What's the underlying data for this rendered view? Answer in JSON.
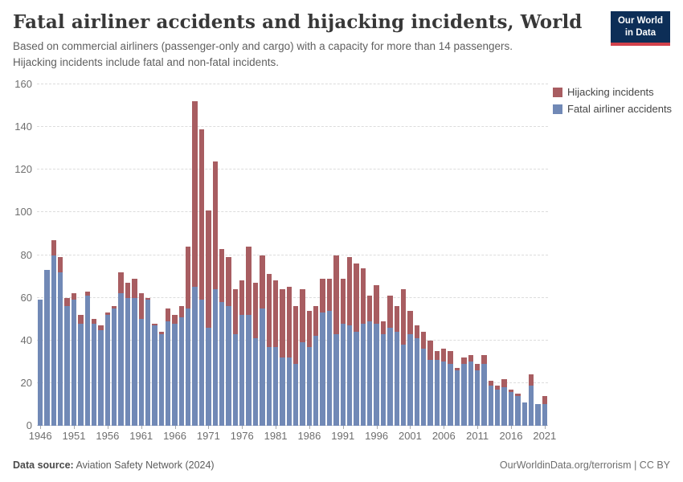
{
  "header": {
    "title": "Fatal airliner accidents and hijacking incidents, World",
    "subtitle": "Based on commercial airliners (passenger-only and cargo) with a capacity for more than 14 passengers. Hijacking incidents include fatal and non-fatal incidents."
  },
  "logo": {
    "line1": "Our World",
    "line2": "in Data",
    "bg_color": "#0d2e57",
    "stripe_color": "#d2414b"
  },
  "legend": {
    "items": [
      {
        "label": "Hijacking incidents",
        "color": "#a85d61"
      },
      {
        "label": "Fatal airliner accidents",
        "color": "#7189b6"
      }
    ]
  },
  "footer": {
    "source_label": "Data source:",
    "source_text": " Aviation Safety Network (2024)",
    "right_text": "OurWorldinData.org/terrorism | CC BY"
  },
  "chart_data": {
    "type": "bar",
    "stacked": true,
    "title": "Fatal airliner accidents and hijacking incidents, World",
    "xlabel": "",
    "ylabel": "",
    "ylim": [
      0,
      160
    ],
    "ytick_step": 20,
    "grid": "horizontal dashed",
    "legend_position": "right",
    "years": [
      1946,
      1947,
      1948,
      1949,
      1950,
      1951,
      1952,
      1953,
      1954,
      1955,
      1956,
      1957,
      1958,
      1959,
      1960,
      1961,
      1962,
      1963,
      1964,
      1965,
      1966,
      1967,
      1968,
      1969,
      1970,
      1971,
      1972,
      1973,
      1974,
      1975,
      1976,
      1977,
      1978,
      1979,
      1980,
      1981,
      1982,
      1983,
      1984,
      1985,
      1986,
      1987,
      1988,
      1989,
      1990,
      1991,
      1992,
      1993,
      1994,
      1995,
      1996,
      1997,
      1998,
      1999,
      2000,
      2001,
      2002,
      2003,
      2004,
      2005,
      2006,
      2007,
      2008,
      2009,
      2010,
      2011,
      2012,
      2013,
      2014,
      2015,
      2016,
      2017,
      2018,
      2019,
      2020,
      2021
    ],
    "xticks": [
      1946,
      1951,
      1956,
      1961,
      1966,
      1971,
      1976,
      1981,
      1986,
      1991,
      1996,
      2001,
      2006,
      2011,
      2016,
      2021
    ],
    "series": [
      {
        "name": "Fatal airliner accidents",
        "color": "#7189b6",
        "values": [
          59,
          73,
          80,
          72,
          56,
          59,
          48,
          61,
          48,
          45,
          52,
          55,
          62,
          60,
          60,
          50,
          59,
          47,
          43,
          49,
          48,
          51,
          55,
          65,
          59,
          46,
          64,
          58,
          56,
          43,
          52,
          52,
          41,
          55,
          37,
          37,
          32,
          32,
          29,
          39,
          37,
          42,
          53,
          54,
          43,
          48,
          47,
          44,
          48,
          49,
          48,
          43,
          46,
          44,
          38,
          43,
          41,
          36,
          31,
          31,
          30,
          29,
          26,
          29,
          30,
          26,
          29,
          19,
          17,
          18,
          16,
          14,
          11,
          19,
          10,
          10
        ]
      },
      {
        "name": "Hijacking incidents",
        "color": "#a85d61",
        "values": [
          0,
          0,
          7,
          7,
          4,
          3,
          4,
          2,
          2,
          2,
          1,
          1,
          10,
          7,
          9,
          12,
          1,
          1,
          1,
          6,
          4,
          5,
          29,
          87,
          80,
          55,
          60,
          25,
          23,
          21,
          16,
          32,
          26,
          25,
          34,
          31,
          32,
          33,
          27,
          25,
          17,
          14,
          16,
          15,
          37,
          21,
          32,
          32,
          26,
          12,
          18,
          6,
          15,
          12,
          26,
          11,
          6,
          8,
          9,
          4,
          6,
          6,
          1,
          3,
          3,
          3,
          4,
          2,
          2,
          4,
          1,
          1,
          0,
          5,
          0,
          4
        ]
      }
    ]
  }
}
